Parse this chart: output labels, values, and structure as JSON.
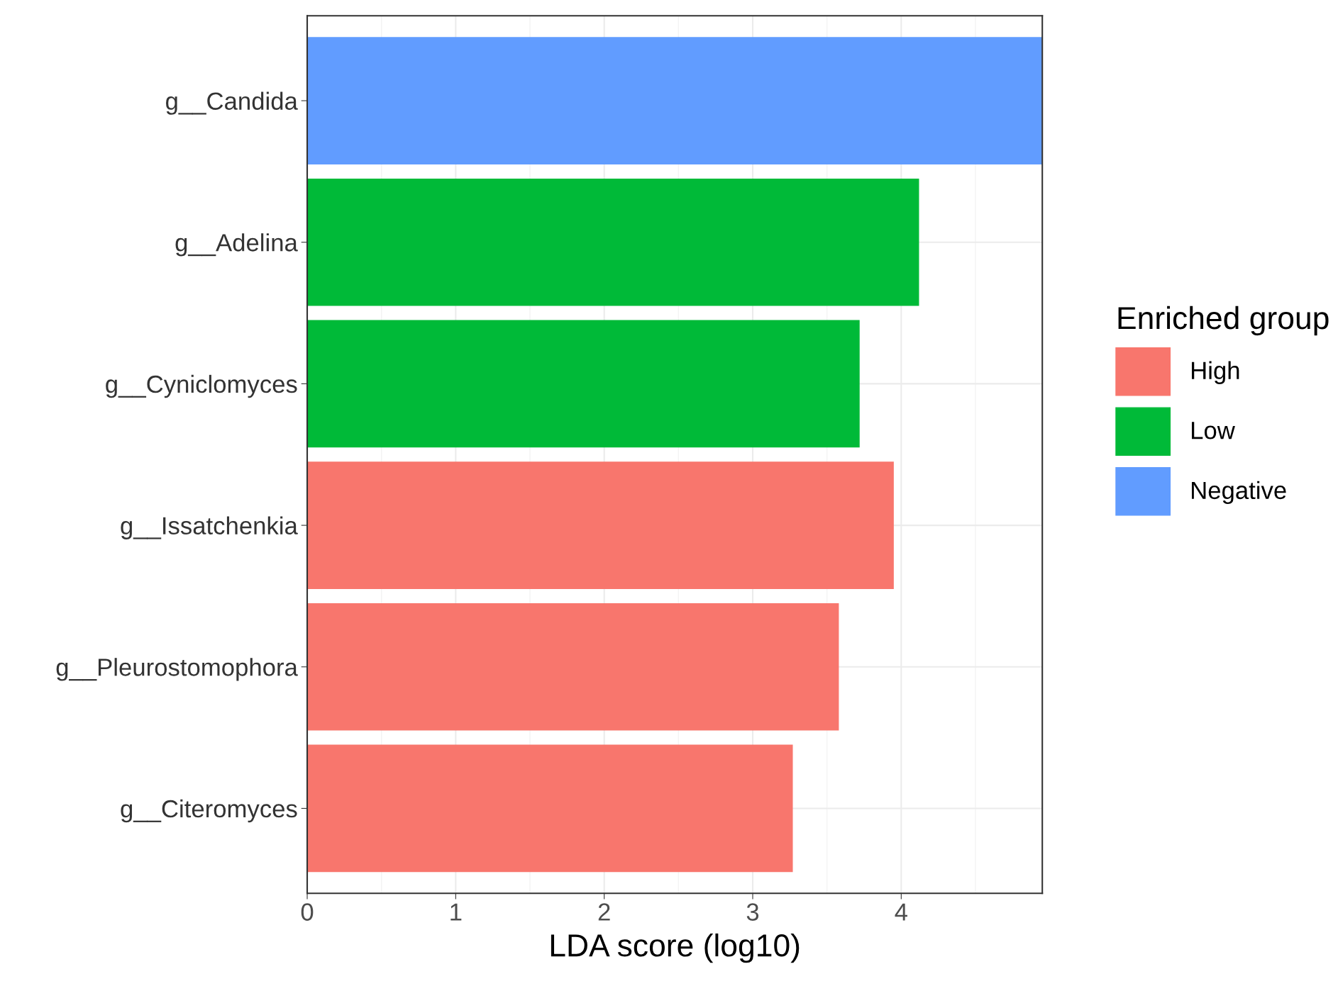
{
  "chart_data": {
    "type": "bar",
    "orientation": "horizontal",
    "categories": [
      "g__Candida",
      "g__Adelina",
      "g__Cyniclomyces",
      "g__Issatchenkia",
      "g__Pleurostomophora",
      "g__Citeromyces"
    ],
    "series": [
      {
        "name": "High",
        "color": "#f8766d",
        "values": [
          null,
          null,
          null,
          3.95,
          3.58,
          3.27
        ]
      },
      {
        "name": "Low",
        "color": "#00ba38",
        "values": [
          null,
          4.12,
          3.72,
          null,
          null,
          null
        ]
      },
      {
        "name": "Negative",
        "color": "#619cff",
        "values": [
          4.95,
          null,
          null,
          null,
          null,
          null
        ]
      }
    ],
    "xlabel": "LDA score (log10)",
    "legend_title": "Enriched group",
    "legend": "right",
    "xlim": [
      0,
      4.95
    ],
    "xticks": [
      0,
      1,
      2,
      3,
      4
    ],
    "grid": true
  }
}
